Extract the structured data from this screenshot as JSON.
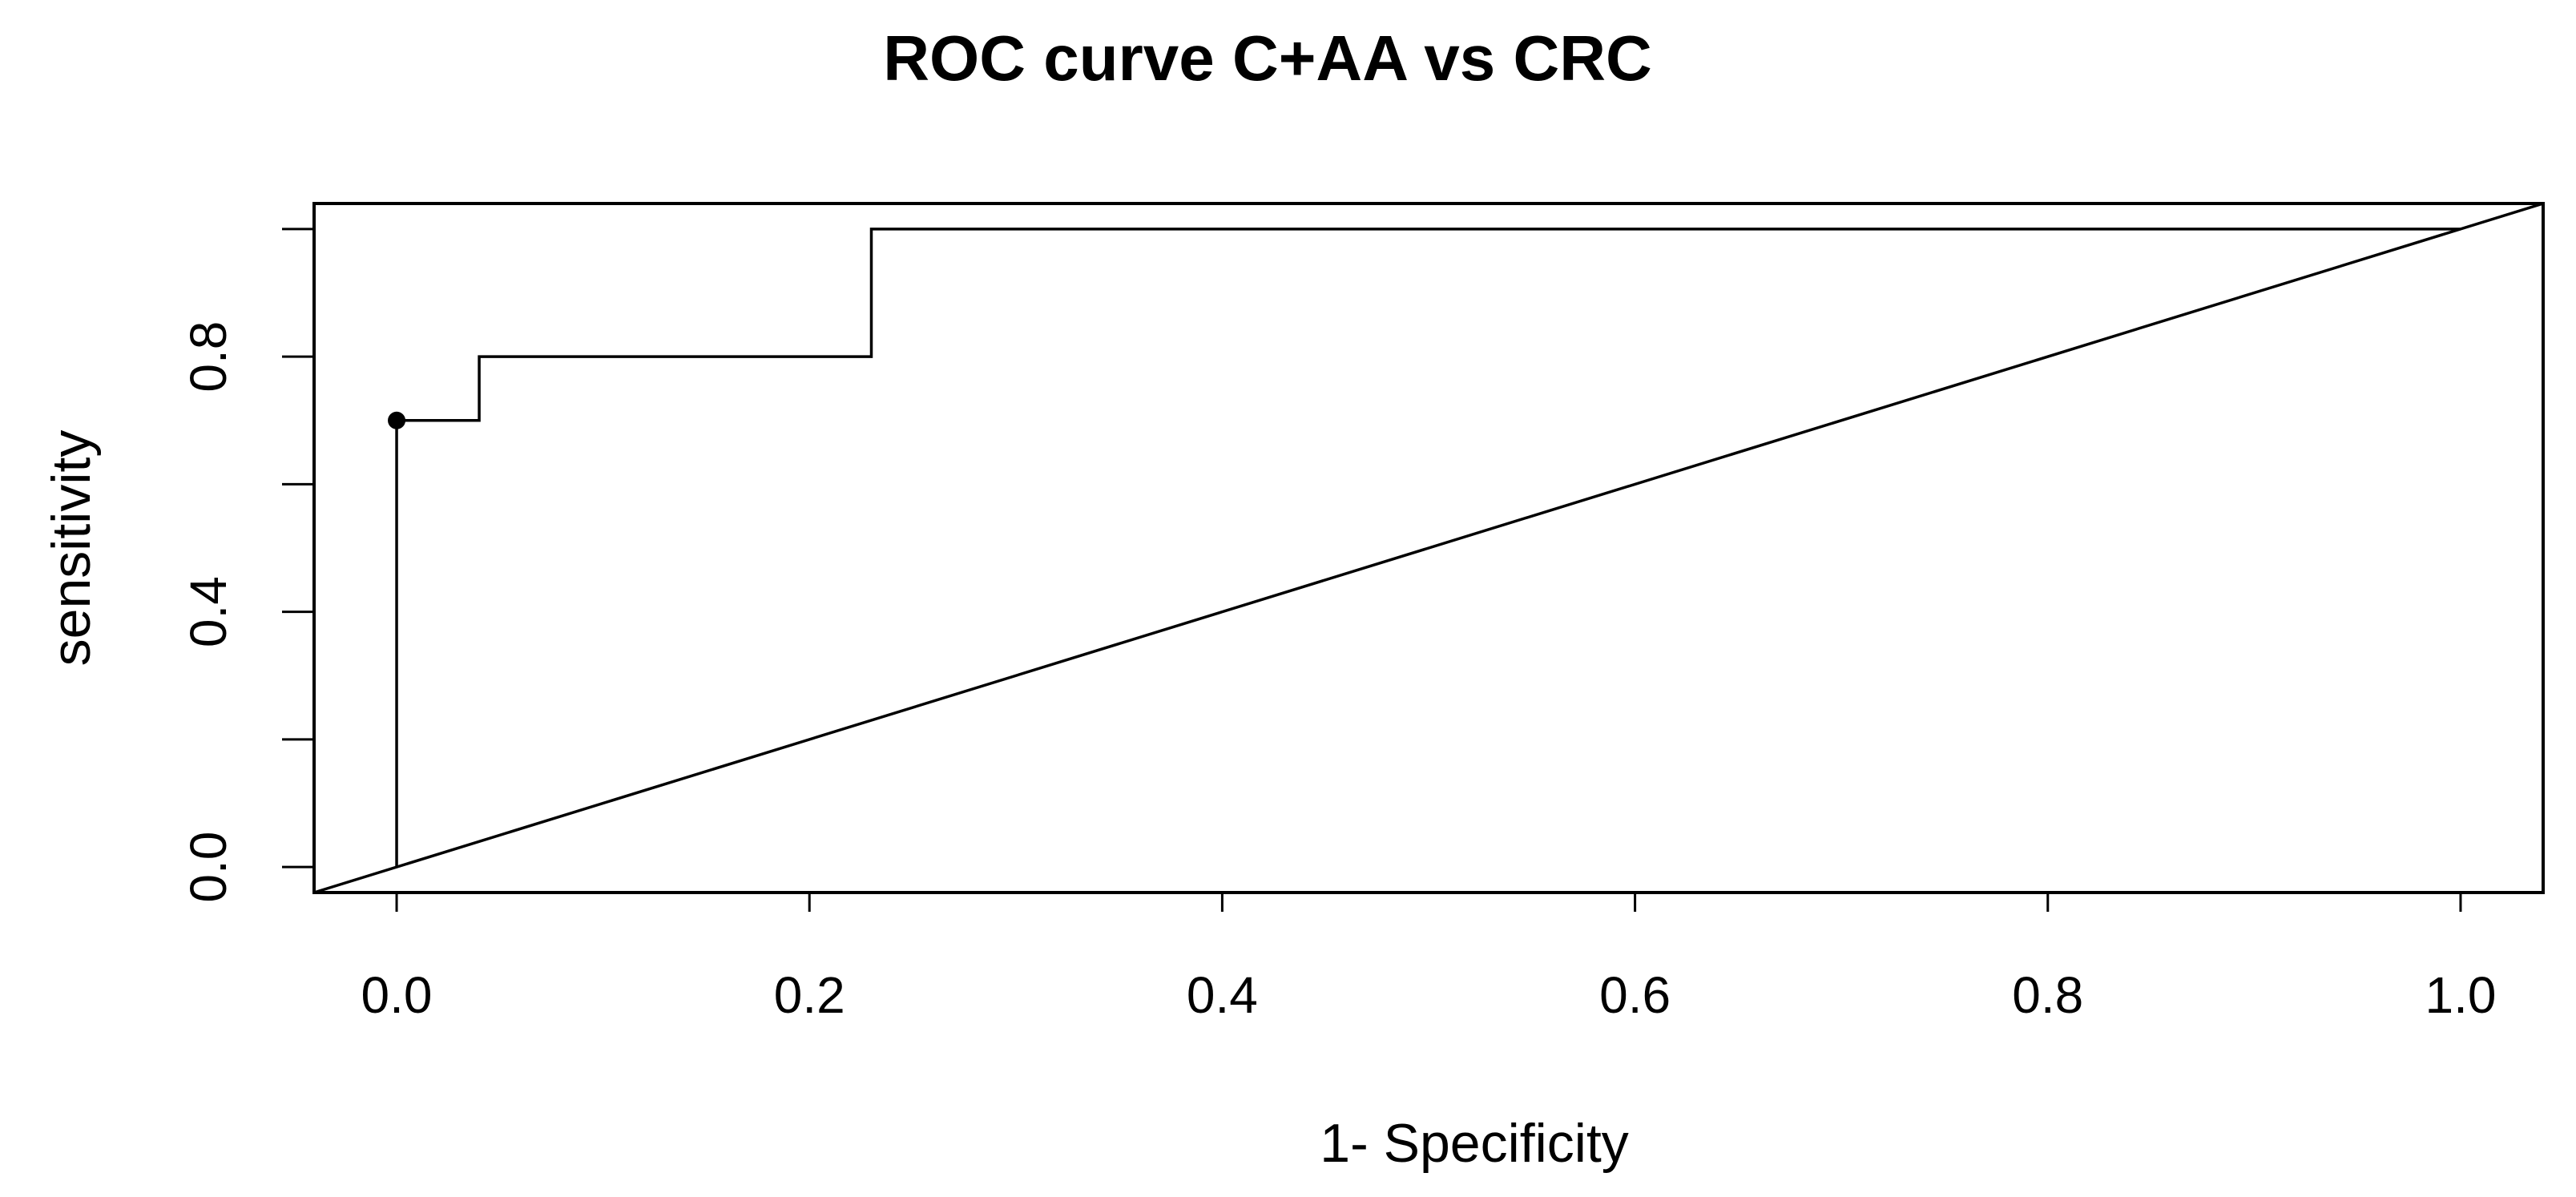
{
  "chart_data": {
    "type": "line",
    "title": "ROC curve C+AA vs CRC",
    "xlabel": "1- Specificity",
    "ylabel": "sensitivity",
    "xlim": [
      -0.04,
      1.04
    ],
    "ylim": [
      -0.04,
      1.04
    ],
    "x_ticks": [
      0.0,
      0.2,
      0.4,
      0.6,
      0.8,
      1.0
    ],
    "x_tick_labels": [
      "0.0",
      "0.2",
      "0.4",
      "0.6",
      "0.8",
      "1.0"
    ],
    "y_ticks": [
      0.0,
      0.2,
      0.4,
      0.6,
      0.8,
      1.0
    ],
    "y_tick_labels": [
      "0.0",
      "",
      "0.4",
      "",
      "0.8",
      ""
    ],
    "grid": false,
    "series": [
      {
        "name": "ROC curve",
        "style": "step",
        "x": [
          0.0,
          0.0,
          0.04,
          0.04,
          0.23,
          0.23,
          1.0
        ],
        "y": [
          0.0,
          0.7,
          0.7,
          0.8,
          0.8,
          1.0,
          1.0
        ]
      },
      {
        "name": "reference diagonal",
        "style": "line",
        "x": [
          -0.04,
          1.04
        ],
        "y": [
          -0.04,
          1.04
        ]
      }
    ],
    "points": [
      {
        "name": "optimal cutoff",
        "x": 0.0,
        "y": 0.7
      }
    ],
    "colors": {
      "line": "#000000",
      "background": "#ffffff"
    }
  }
}
